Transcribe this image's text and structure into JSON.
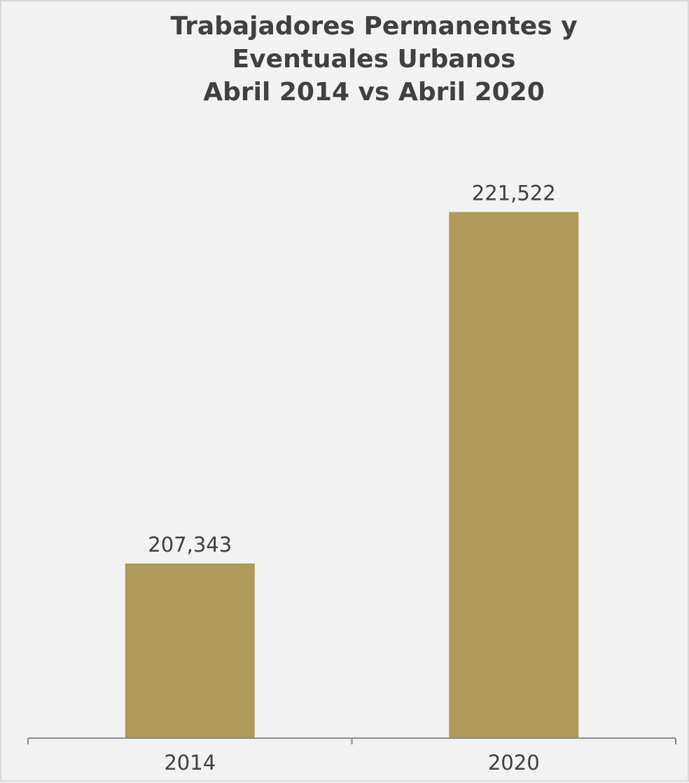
{
  "chart_data": {
    "type": "bar",
    "title_lines": [
      "Trabajadores Permanentes y",
      "Eventuales Urbanos",
      "Abril 2014 vs Abril 2020"
    ],
    "categories": [
      "2014",
      "2020"
    ],
    "values": [
      207343,
      221522
    ],
    "value_labels": [
      "207,343",
      "221,522"
    ],
    "xlabel": "",
    "ylabel": "",
    "ylim": [
      200300,
      222950
    ],
    "grid": false,
    "legend": "none",
    "colors": {
      "bar": "#af995b",
      "text": "#404040",
      "axis": "#8c8c8c",
      "background": "#f2f2f2"
    }
  }
}
